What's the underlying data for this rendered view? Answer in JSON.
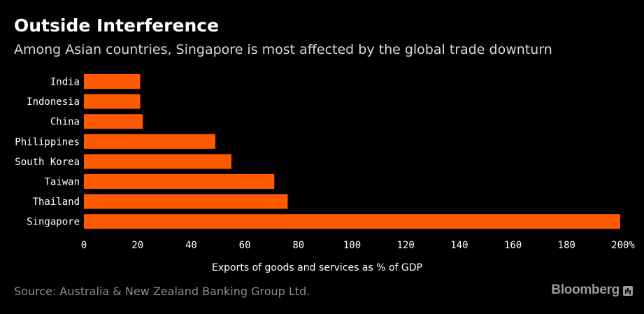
{
  "header": {
    "title": "Outside Interference",
    "subtitle": "Among Asian countries, Singapore is most affected by the global trade downturn"
  },
  "footer": {
    "source": "Source: Australia & New Zealand Banking Group Ltd.",
    "brand": "Bloomberg"
  },
  "colors": {
    "bar": "#ff5a00",
    "background": "#000000",
    "axis_text": "#ffffff"
  },
  "chart_data": {
    "type": "bar",
    "orientation": "horizontal",
    "title": "Outside Interference",
    "subtitle": "Among Asian countries, Singapore is most affected by the global trade downturn",
    "xlabel": "Exports of goods and services as % of GDP",
    "ylabel": "",
    "categories": [
      "India",
      "Indonesia",
      "China",
      "Philippines",
      "South Korea",
      "Taiwan",
      "Thailand",
      "Singapore"
    ],
    "values": [
      21,
      21,
      22,
      49,
      55,
      71,
      76,
      200
    ],
    "xlim": [
      0,
      200
    ],
    "xticks": [
      0,
      20,
      40,
      60,
      80,
      100,
      120,
      140,
      160,
      180,
      200
    ],
    "xtick_labels": [
      "0",
      "20",
      "40",
      "60",
      "80",
      "100",
      "120",
      "140",
      "160",
      "180",
      "200%"
    ],
    "grid": false,
    "legend": "none"
  }
}
